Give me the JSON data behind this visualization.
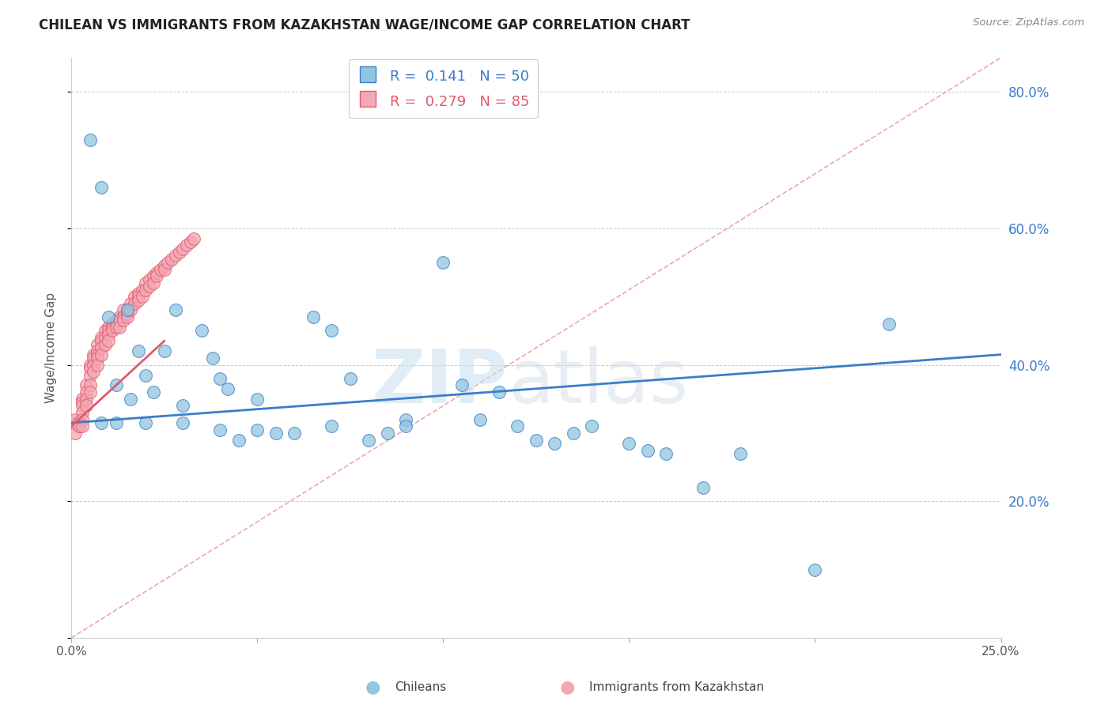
{
  "title": "CHILEAN VS IMMIGRANTS FROM KAZAKHSTAN WAGE/INCOME GAP CORRELATION CHART",
  "source_text": "Source: ZipAtlas.com",
  "ylabel": "Wage/Income Gap",
  "legend_label_1": "Chileans",
  "legend_label_2": "Immigrants from Kazakhstan",
  "R1": 0.141,
  "N1": 50,
  "R2": 0.279,
  "N2": 85,
  "color_blue": "#92c5de",
  "color_pink": "#f4a7b4",
  "color_blue_line": "#3a7dc9",
  "color_pink_line": "#e05a6a",
  "color_ref_line": "#e8a0aa",
  "xlim": [
    0.0,
    0.25
  ],
  "ylim": [
    0.0,
    0.85
  ],
  "yticks": [
    0.0,
    0.2,
    0.4,
    0.6,
    0.8
  ],
  "ytick_labels": [
    "",
    "20.0%",
    "40.0%",
    "60.0%",
    "80.0%"
  ],
  "watermark_zip": "ZIP",
  "watermark_atlas": "atlas",
  "blue_line_x": [
    0.0,
    0.25
  ],
  "blue_line_y": [
    0.315,
    0.415
  ],
  "pink_line_x": [
    0.0,
    0.025
  ],
  "pink_line_y": [
    0.31,
    0.435
  ],
  "ref_line_x": [
    0.0,
    0.25
  ],
  "ref_line_y": [
    0.0,
    0.85
  ],
  "chileans_x": [
    0.005,
    0.008,
    0.01,
    0.012,
    0.015,
    0.016,
    0.018,
    0.02,
    0.022,
    0.025,
    0.028,
    0.03,
    0.035,
    0.038,
    0.04,
    0.042,
    0.045,
    0.05,
    0.055,
    0.06,
    0.065,
    0.07,
    0.075,
    0.08,
    0.085,
    0.09,
    0.1,
    0.105,
    0.11,
    0.115,
    0.12,
    0.125,
    0.13,
    0.135,
    0.14,
    0.15,
    0.155,
    0.16,
    0.17,
    0.18,
    0.008,
    0.012,
    0.02,
    0.03,
    0.04,
    0.05,
    0.07,
    0.09,
    0.2,
    0.22
  ],
  "chileans_y": [
    0.73,
    0.66,
    0.47,
    0.37,
    0.48,
    0.35,
    0.42,
    0.385,
    0.36,
    0.42,
    0.48,
    0.34,
    0.45,
    0.41,
    0.38,
    0.365,
    0.29,
    0.35,
    0.3,
    0.3,
    0.47,
    0.45,
    0.38,
    0.29,
    0.3,
    0.32,
    0.55,
    0.37,
    0.32,
    0.36,
    0.31,
    0.29,
    0.285,
    0.3,
    0.31,
    0.285,
    0.275,
    0.27,
    0.22,
    0.27,
    0.315,
    0.315,
    0.315,
    0.315,
    0.305,
    0.305,
    0.31,
    0.31,
    0.1,
    0.46
  ],
  "kazakhstan_x": [
    0.001,
    0.001,
    0.001,
    0.002,
    0.002,
    0.002,
    0.002,
    0.003,
    0.003,
    0.003,
    0.003,
    0.003,
    0.003,
    0.004,
    0.004,
    0.004,
    0.004,
    0.005,
    0.005,
    0.005,
    0.005,
    0.005,
    0.006,
    0.006,
    0.006,
    0.006,
    0.007,
    0.007,
    0.007,
    0.007,
    0.007,
    0.008,
    0.008,
    0.008,
    0.008,
    0.009,
    0.009,
    0.009,
    0.01,
    0.01,
    0.01,
    0.01,
    0.011,
    0.011,
    0.011,
    0.012,
    0.012,
    0.012,
    0.013,
    0.013,
    0.013,
    0.014,
    0.014,
    0.014,
    0.015,
    0.015,
    0.015,
    0.016,
    0.016,
    0.017,
    0.017,
    0.018,
    0.018,
    0.018,
    0.019,
    0.019,
    0.02,
    0.02,
    0.021,
    0.021,
    0.022,
    0.022,
    0.023,
    0.023,
    0.024,
    0.025,
    0.025,
    0.026,
    0.027,
    0.028,
    0.029,
    0.03,
    0.031,
    0.032,
    0.033
  ],
  "kazakhstan_y": [
    0.3,
    0.315,
    0.32,
    0.315,
    0.315,
    0.31,
    0.31,
    0.35,
    0.345,
    0.34,
    0.33,
    0.32,
    0.31,
    0.37,
    0.36,
    0.35,
    0.34,
    0.4,
    0.395,
    0.385,
    0.37,
    0.36,
    0.415,
    0.41,
    0.4,
    0.39,
    0.43,
    0.42,
    0.415,
    0.41,
    0.4,
    0.44,
    0.435,
    0.425,
    0.415,
    0.45,
    0.44,
    0.43,
    0.455,
    0.45,
    0.445,
    0.435,
    0.46,
    0.455,
    0.45,
    0.465,
    0.46,
    0.455,
    0.47,
    0.465,
    0.455,
    0.48,
    0.47,
    0.465,
    0.48,
    0.475,
    0.47,
    0.49,
    0.48,
    0.5,
    0.49,
    0.505,
    0.5,
    0.495,
    0.51,
    0.5,
    0.52,
    0.51,
    0.525,
    0.515,
    0.53,
    0.52,
    0.535,
    0.53,
    0.54,
    0.545,
    0.54,
    0.55,
    0.555,
    0.56,
    0.565,
    0.57,
    0.575,
    0.58,
    0.585
  ]
}
